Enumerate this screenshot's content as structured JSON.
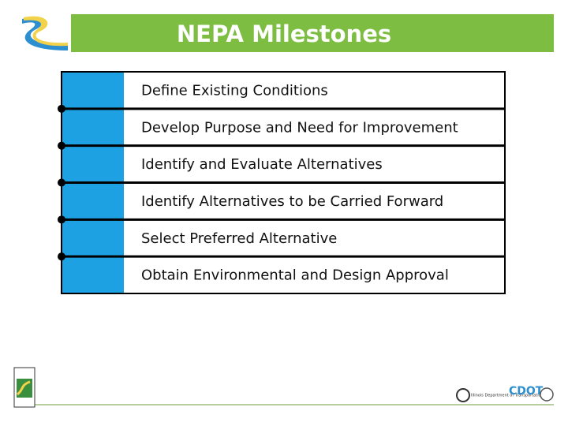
{
  "header": {
    "title": "NEPA Milestones"
  },
  "milestones": [
    "Define Existing Conditions",
    "Develop Purpose and Need for Improvement",
    "Identify and Evaluate Alternatives",
    "Identify Alternatives to be Carried Forward",
    "Select Preferred Alternative",
    "Obtain Environmental and Design Approval"
  ],
  "footer": {
    "logo_right": "CDOT",
    "logo_middle": "Illinois Department of Transportation"
  }
}
